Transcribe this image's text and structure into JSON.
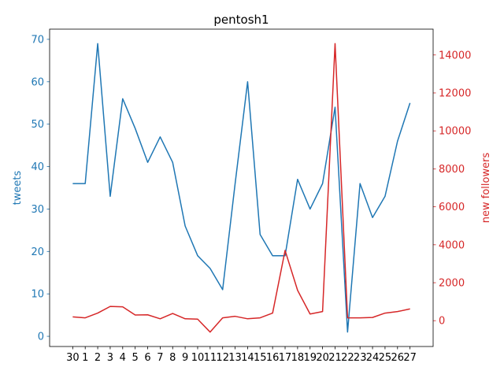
{
  "chart_data": {
    "type": "line",
    "title": "pentosh1",
    "xlabel": "",
    "categories": [
      "30",
      "1",
      "2",
      "3",
      "4",
      "5",
      "6",
      "7",
      "8",
      "9",
      "10",
      "11",
      "12",
      "13",
      "14",
      "15",
      "16",
      "17",
      "18",
      "19",
      "20",
      "21",
      "22",
      "23",
      "24",
      "25",
      "26",
      "27"
    ],
    "series": [
      {
        "name": "tweets",
        "axis": "left",
        "color": "#1f77b4",
        "values": [
          36,
          36,
          69,
          33,
          56,
          49,
          41,
          47,
          41,
          26,
          19,
          16,
          11,
          36,
          60,
          24,
          19,
          19,
          37,
          30,
          36,
          54,
          1,
          36,
          28,
          33,
          46,
          55
        ]
      },
      {
        "name": "new followers",
        "axis": "right",
        "color": "#d62728",
        "values": [
          200,
          150,
          400,
          750,
          730,
          300,
          310,
          100,
          380,
          100,
          80,
          -600,
          150,
          230,
          100,
          150,
          400,
          3700,
          1600,
          350,
          480,
          14600,
          150,
          150,
          170,
          400,
          480,
          620
        ]
      }
    ],
    "y_left": {
      "label": "tweets",
      "lim": [
        -2.4,
        72.4
      ],
      "ticks": [
        0,
        10,
        20,
        30,
        40,
        50,
        60,
        70
      ],
      "tick_labels": [
        "0",
        "10",
        "20",
        "30",
        "40",
        "50",
        "60",
        "70"
      ],
      "color": "#1f77b4"
    },
    "y_right": {
      "label": "new followers",
      "lim": [
        -1360,
        15360
      ],
      "ticks": [
        0,
        2000,
        4000,
        6000,
        8000,
        10000,
        12000,
        14000
      ],
      "tick_labels": [
        "0",
        "2000",
        "4000",
        "6000",
        "8000",
        "10000",
        "12000",
        "14000"
      ],
      "color": "#d62728"
    },
    "grid": false,
    "legend": "none"
  }
}
